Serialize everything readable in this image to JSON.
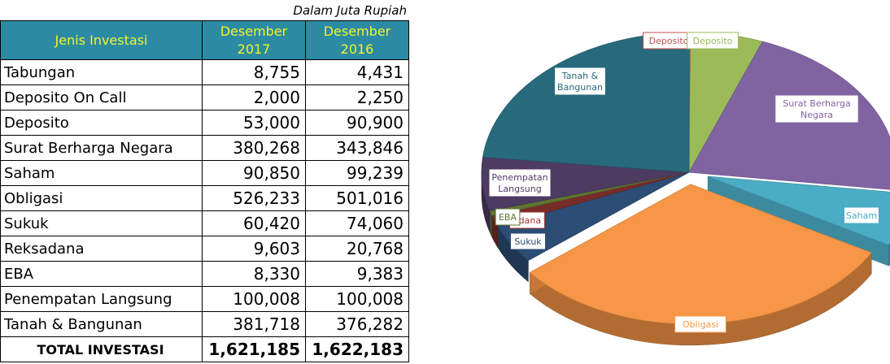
{
  "table": {
    "unit_note": "Dalam Juta Rupiah",
    "headers": [
      "Jenis Investasi",
      "Desember 2017",
      "Desember 2016"
    ],
    "header_lines": {
      "col1": [
        "Desember",
        "2017"
      ],
      "col2": [
        "Desember",
        "2016"
      ]
    },
    "rows": [
      {
        "label": "Tabungan",
        "v2017": "8,755",
        "v2016": "4,431"
      },
      {
        "label": "Deposito On Call",
        "v2017": "2,000",
        "v2016": "2,250"
      },
      {
        "label": "Deposito",
        "v2017": "53,000",
        "v2016": "90,900"
      },
      {
        "label": "Surat Berharga Negara",
        "v2017": "380,268",
        "v2016": "343,846"
      },
      {
        "label": "Saham",
        "v2017": "90,850",
        "v2016": "99,239"
      },
      {
        "label": "Obligasi",
        "v2017": "526,233",
        "v2016": "501,016"
      },
      {
        "label": "Sukuk",
        "v2017": "60,420",
        "v2016": "74,060"
      },
      {
        "label": "Reksadana",
        "v2017": "9,603",
        "v2016": "20,768"
      },
      {
        "label": "EBA",
        "v2017": "8,330",
        "v2016": "9,383"
      },
      {
        "label": "Penempatan Langsung",
        "v2017": "100,008",
        "v2016": "100,008"
      },
      {
        "label": "Tanah & Bangunan",
        "v2017": "381,718",
        "v2016": "376,282"
      }
    ],
    "total": {
      "label": "TOTAL INVESTASI",
      "v2017": "1,621,185",
      "v2016": "1,622,183"
    }
  },
  "chart_data": {
    "type": "pie",
    "style": "3d-exploded",
    "slices": [
      {
        "label": "Deposito",
        "value": 2250,
        "color": "#c0504d",
        "label_color": "#c0504d",
        "label_lines": [
          "Deposito"
        ]
      },
      {
        "label": "Deposito",
        "value": 90900,
        "color": "#9bbb59",
        "label_color": "#9bbb59",
        "label_lines": [
          "Deposito"
        ]
      },
      {
        "label": "Surat Berharga Negara",
        "value": 343846,
        "color": "#8064a2",
        "label_color": "#8064a2",
        "label_lines": [
          "Surat Berharga",
          "Negara"
        ]
      },
      {
        "label": "Saham",
        "value": 99239,
        "color": "#4bacc6",
        "label_color": "#4bacc6",
        "label_lines": [
          "Saham"
        ]
      },
      {
        "label": "Obligasi",
        "value": 501016,
        "color": "#f79646",
        "label_color": "#f79646",
        "label_lines": [
          "Obligasi"
        ]
      },
      {
        "label": "Sukuk",
        "value": 74060,
        "color": "#2c4d75",
        "label_color": "#2c4d75",
        "label_lines": [
          "Sukuk"
        ]
      },
      {
        "label": "Reksadana",
        "value": 20768,
        "color": "#772c2a",
        "label_color": "#a0352f",
        "label_lines": [
          "adana"
        ]
      },
      {
        "label": "EBA",
        "value": 9383,
        "color": "#5f7530",
        "label_color": "#5f7530",
        "label_lines": [
          "EBA"
        ]
      },
      {
        "label": "Penempatan Langsung",
        "value": 100008,
        "color": "#4d3b62",
        "label_color": "#4d3b62",
        "label_lines": [
          "Penempatan",
          "Langsung"
        ]
      },
      {
        "label": "Tanah & Bangunan",
        "value": 376282,
        "color": "#276a7c",
        "label_color": "#276a7c",
        "label_lines": [
          "Tanah &",
          "Bangunan"
        ]
      }
    ],
    "label_fill": "#ffffff"
  }
}
